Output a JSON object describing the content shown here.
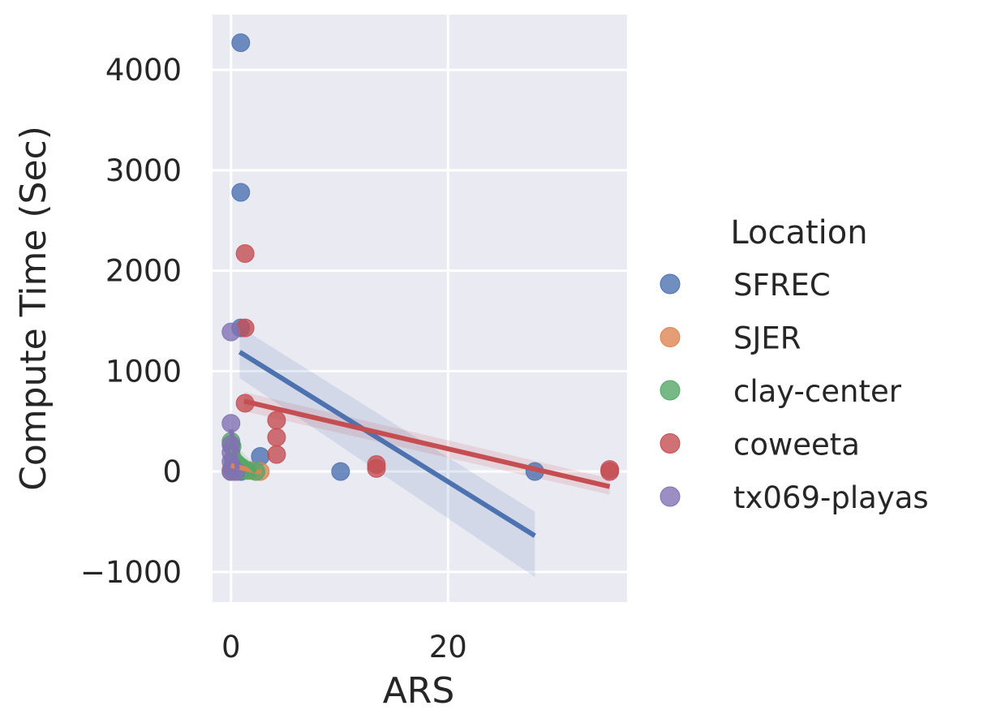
{
  "chart_data": {
    "type": "scatter",
    "xlabel": "ARS",
    "ylabel": "Compute Time (Sec)",
    "xlim": [
      -1.7,
      36.5
    ],
    "ylim": [
      -1300,
      4550
    ],
    "x_ticks": [
      0,
      20
    ],
    "x_tick_labels": [
      "0",
      "20"
    ],
    "y_ticks": [
      -1000,
      0,
      1000,
      2000,
      3000,
      4000
    ],
    "y_tick_labels": [
      "−1000",
      "0",
      "1000",
      "2000",
      "3000",
      "4000"
    ],
    "grid": true,
    "legend": {
      "title": "Location",
      "placement": "right"
    },
    "series": [
      {
        "name": "SFREC",
        "color": "#4c72b0",
        "points": [
          [
            0.9,
            4270
          ],
          [
            0.9,
            2780
          ],
          [
            0.9,
            1430
          ],
          [
            2.7,
            150
          ],
          [
            10.1,
            0
          ],
          [
            28.0,
            0
          ],
          [
            0.9,
            0
          ],
          [
            0.0,
            0
          ]
        ],
        "fit": {
          "x": [
            0.8,
            28.0
          ],
          "y": [
            1190,
            -640
          ],
          "ci_low": [
            930,
            -1050
          ],
          "ci_high": [
            1440,
            -400
          ]
        }
      },
      {
        "name": "SJER",
        "color": "#dd8452",
        "points": [
          [
            1.0,
            40
          ],
          [
            2.7,
            0
          ],
          [
            0.3,
            0
          ],
          [
            0.0,
            20
          ],
          [
            1.8,
            10
          ]
        ],
        "fit": {
          "x": [
            0.0,
            2.8
          ],
          "y": [
            60,
            -10
          ],
          "ci_low": [
            20,
            -60
          ],
          "ci_high": [
            110,
            40
          ]
        }
      },
      {
        "name": "clay-center",
        "color": "#55a868",
        "points": [
          [
            0.0,
            300
          ],
          [
            0.1,
            250
          ],
          [
            0.2,
            120
          ],
          [
            1.0,
            20
          ],
          [
            1.5,
            10
          ],
          [
            2.3,
            0
          ],
          [
            0.5,
            50
          ]
        ],
        "fit": {
          "x": [
            0.0,
            2.3
          ],
          "y": [
            220,
            0
          ],
          "ci_low": [
            130,
            -60
          ],
          "ci_high": [
            310,
            60
          ]
        }
      },
      {
        "name": "coweeta",
        "color": "#c44e52",
        "points": [
          [
            1.3,
            2170
          ],
          [
            1.3,
            1430
          ],
          [
            1.3,
            680
          ],
          [
            4.2,
            510
          ],
          [
            4.2,
            340
          ],
          [
            4.2,
            170
          ],
          [
            13.4,
            70
          ],
          [
            13.4,
            30
          ],
          [
            34.9,
            20
          ],
          [
            34.9,
            0
          ]
        ],
        "fit": {
          "x": [
            1.2,
            34.9
          ],
          "y": [
            700,
            -150
          ],
          "ci_low": [
            600,
            -230
          ],
          "ci_high": [
            790,
            -70
          ]
        }
      },
      {
        "name": "tx069-playas",
        "color": "#8172b3",
        "points": [
          [
            0.0,
            1390
          ],
          [
            0.0,
            480
          ],
          [
            0.0,
            270
          ],
          [
            0.0,
            190
          ],
          [
            0.0,
            100
          ],
          [
            0.1,
            30
          ],
          [
            0.5,
            0
          ],
          [
            0.0,
            0
          ]
        ],
        "fit": {
          "x": [
            0.0,
            0.6
          ],
          "y": [
            420,
            20
          ],
          "ci_low": [
            200,
            -100
          ],
          "ci_high": [
            640,
            140
          ]
        }
      }
    ]
  }
}
